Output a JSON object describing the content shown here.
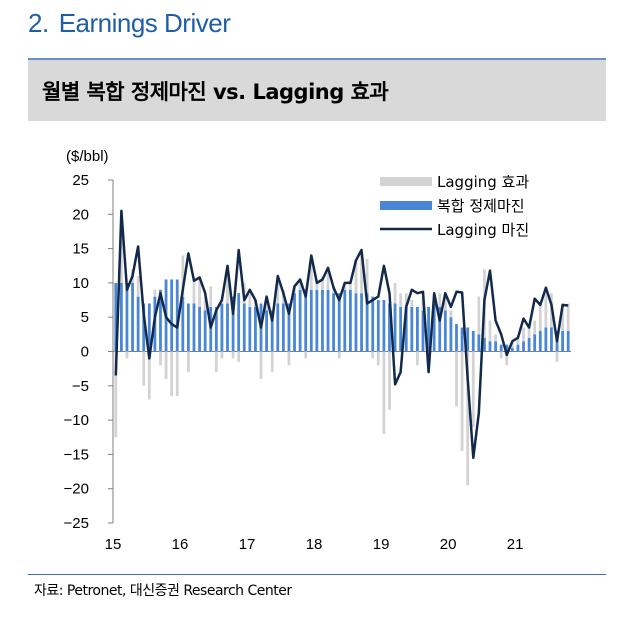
{
  "header": {
    "number": "2.",
    "title": "Earnings Driver"
  },
  "chart_title": "월별 복합 정제마진 vs. Lagging 효과",
  "source": "자료: Petronet, 대신증권 Research Center",
  "colors": {
    "bar": "#4a86d6",
    "lag_effect": "#d3d3d3",
    "line": "#13294b",
    "title": "#1f5fa8"
  },
  "chart_data": {
    "type": "bar+line",
    "unit_label": "($/bbl)",
    "ylim": [
      -25,
      25
    ],
    "yticks": [
      25,
      20,
      15,
      10,
      5,
      0,
      -5,
      -10,
      -15,
      -20,
      -25
    ],
    "ytick_labels": [
      "25",
      "20",
      "15",
      "10",
      "5",
      "0",
      "−5",
      "−10",
      "−15",
      "−20",
      "−25"
    ],
    "xtick_labels": [
      "15",
      "16",
      "17",
      "18",
      "19",
      "20",
      "21"
    ],
    "months_per_year": 12,
    "legend": [
      "Lagging 효과",
      "복합 정제마진",
      "Lagging 마진"
    ],
    "series": [
      {
        "name": "복합 정제마진",
        "type": "bar",
        "values": [
          10,
          10,
          10,
          10,
          8,
          7,
          7,
          8,
          9,
          10.5,
          10.5,
          10.5,
          8,
          7,
          7,
          6.5,
          6,
          6.5,
          6.5,
          7,
          7,
          8,
          8.5,
          7,
          6.5,
          6.5,
          7,
          6,
          6,
          7,
          7,
          7,
          8.5,
          9,
          9,
          9,
          9,
          9,
          9,
          8.5,
          8.5,
          9,
          9,
          8.5,
          8.5,
          8.5,
          8,
          7.5,
          7.5,
          7,
          7,
          6.5,
          6.5,
          6.5,
          6.5,
          6,
          6.5,
          7,
          6.5,
          6,
          5,
          4,
          3.5,
          3.5,
          3,
          2.5,
          2,
          1.5,
          1.5,
          1,
          1,
          0.5,
          1,
          1.5,
          2,
          2.5,
          3,
          3.5,
          3.5,
          3,
          3,
          3
        ]
      },
      {
        "name": "Lagging 효과",
        "type": "bar",
        "values": [
          -12.5,
          10.5,
          -1,
          2,
          3,
          -5,
          -7,
          1,
          -2,
          -4,
          -6.5,
          -6.5,
          6,
          -3,
          3.5,
          4,
          2,
          3,
          -3,
          -1,
          5,
          -1,
          -1.5,
          3,
          2,
          1,
          -4,
          2,
          -3,
          3,
          2,
          -2,
          1,
          1.5,
          -1,
          5,
          1,
          2,
          3,
          1,
          -1,
          1,
          1,
          5,
          6,
          5,
          -1,
          -2,
          -12,
          -8.5,
          3,
          2,
          2,
          1,
          -2,
          2,
          -3,
          1,
          2,
          2.5,
          1,
          -8,
          -14.5,
          -19.5,
          -11,
          5.5,
          10,
          3,
          1,
          -1,
          -2,
          1,
          1,
          2,
          1.5,
          2,
          4,
          5,
          5,
          -1.5,
          4,
          4
        ]
      },
      {
        "name": "Lagging 마진",
        "type": "line",
        "values": [
          -3.5,
          20.5,
          9,
          11,
          15.3,
          5.5,
          -1,
          5,
          8.5,
          5,
          4,
          3.5,
          9,
          14.3,
          10.3,
          10.8,
          8.5,
          3.5,
          6,
          7.5,
          12.5,
          5.5,
          14.8,
          7.5,
          9,
          7.5,
          3.5,
          8,
          4.5,
          11,
          8.5,
          5.5,
          9.5,
          10.5,
          8,
          14,
          10,
          10.5,
          12.2,
          9.3,
          7.5,
          10,
          10,
          13.3,
          14.8,
          7,
          7.5,
          8,
          12.5,
          8.5,
          -4.8,
          -3,
          6.5,
          9,
          8.5,
          8.7,
          -3,
          8.5,
          4.5,
          8.5,
          6.5,
          8.7,
          8.6,
          -4,
          -15.5,
          -9,
          7.5,
          11.8,
          4.5,
          2.5,
          -0.5,
          1.5,
          2,
          4.8,
          3.5,
          7.7,
          6.8,
          9.3,
          6.8,
          1.5,
          6.8,
          6.7
        ]
      }
    ]
  }
}
